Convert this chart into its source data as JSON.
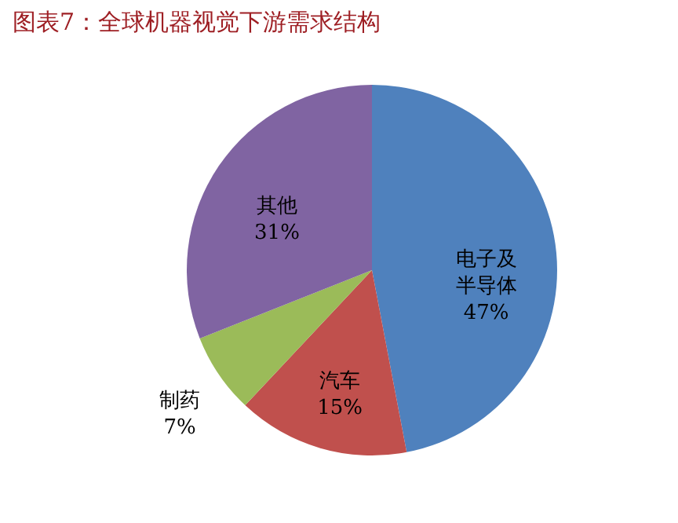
{
  "chart_data": {
    "type": "pie",
    "title": "图表7：全球机器视觉下游需求结构",
    "categories": [
      "电子及半导体",
      "汽车",
      "制药",
      "其他"
    ],
    "values": [
      47,
      15,
      7,
      31
    ],
    "colors": [
      "#4f81bd",
      "#c0504d",
      "#9bbb59",
      "#8064a2"
    ],
    "value_labels": [
      "47%",
      "15%",
      "7%",
      "31%"
    ]
  }
}
